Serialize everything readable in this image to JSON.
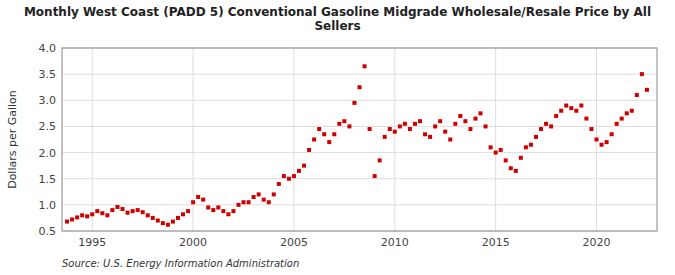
{
  "chart_data": {
    "type": "scatter",
    "title": "Monthly West Coast (PADD 5) Conventional Gasoline Midgrade Wholesale/Resale Price by All\nSellers",
    "y_label": "Dollars per Gallon",
    "annotations": [
      "Source: U.S. Energy Information Administration"
    ],
    "color": "#CC0000",
    "marker": "square",
    "grid": true,
    "xlim": [
      1993.5,
      2023.0
    ],
    "ylim": [
      0.5,
      4.0
    ],
    "xticks": [
      1995,
      2000,
      2005,
      2010,
      2015,
      2020
    ],
    "yticks": [
      0.5,
      {
        "value": 1,
        "label": "1.0"
      },
      1.5,
      {
        "value": 2,
        "label": "2.0"
      },
      2.5,
      {
        "value": 3,
        "label": "3.0"
      },
      3.5,
      {
        "value": 4,
        "label": "4.0"
      }
    ],
    "x": [
      1993.75,
      1994.0,
      1994.25,
      1994.5,
      1994.75,
      1995.0,
      1995.25,
      1995.5,
      1995.75,
      1996.0,
      1996.25,
      1996.5,
      1996.75,
      1997.0,
      1997.25,
      1997.5,
      1997.75,
      1998.0,
      1998.25,
      1998.5,
      1998.75,
      1999.0,
      1999.25,
      1999.5,
      1999.75,
      2000.0,
      2000.25,
      2000.5,
      2000.75,
      2001.0,
      2001.25,
      2001.5,
      2001.75,
      2002.0,
      2002.25,
      2002.5,
      2002.75,
      2003.0,
      2003.25,
      2003.5,
      2003.75,
      2004.0,
      2004.25,
      2004.5,
      2004.75,
      2005.0,
      2005.25,
      2005.5,
      2005.75,
      2006.0,
      2006.25,
      2006.5,
      2006.75,
      2007.0,
      2007.25,
      2007.5,
      2007.75,
      2008.0,
      2008.25,
      2008.5,
      2008.75,
      2009.0,
      2009.25,
      2009.5,
      2009.75,
      2010.0,
      2010.25,
      2010.5,
      2010.75,
      2011.0,
      2011.25,
      2011.5,
      2011.75,
      2012.0,
      2012.25,
      2012.5,
      2012.75,
      2013.0,
      2013.25,
      2013.5,
      2013.75,
      2014.0,
      2014.25,
      2014.5,
      2014.75,
      2015.0,
      2015.25,
      2015.5,
      2015.75,
      2016.0,
      2016.25,
      2016.5,
      2016.75,
      2017.0,
      2017.25,
      2017.5,
      2017.75,
      2018.0,
      2018.25,
      2018.5,
      2018.75,
      2019.0,
      2019.25,
      2019.5,
      2019.75,
      2020.0,
      2020.25,
      2020.5,
      2020.75,
      2021.0,
      2021.25,
      2021.5,
      2021.75,
      2022.0,
      2022.25,
      2022.5
    ],
    "values": [
      0.68,
      0.72,
      0.76,
      0.8,
      0.78,
      0.82,
      0.88,
      0.84,
      0.8,
      0.9,
      0.96,
      0.92,
      0.85,
      0.88,
      0.9,
      0.86,
      0.8,
      0.75,
      0.7,
      0.65,
      0.62,
      0.68,
      0.75,
      0.82,
      0.88,
      1.05,
      1.15,
      1.1,
      0.95,
      0.9,
      0.95,
      0.88,
      0.82,
      0.88,
      1.0,
      1.05,
      1.05,
      1.15,
      1.2,
      1.1,
      1.05,
      1.2,
      1.4,
      1.55,
      1.5,
      1.55,
      1.65,
      1.75,
      2.05,
      2.25,
      2.45,
      2.35,
      2.2,
      2.35,
      2.55,
      2.6,
      2.5,
      2.95,
      3.25,
      3.65,
      2.45,
      1.55,
      1.85,
      2.3,
      2.45,
      2.4,
      2.5,
      2.55,
      2.45,
      2.55,
      2.6,
      2.35,
      2.3,
      2.5,
      2.6,
      2.4,
      2.25,
      2.55,
      2.7,
      2.6,
      2.45,
      2.65,
      2.75,
      2.5,
      2.1,
      2.0,
      2.05,
      1.85,
      1.7,
      1.65,
      1.9,
      2.1,
      2.15,
      2.3,
      2.45,
      2.55,
      2.5,
      2.7,
      2.8,
      2.9,
      2.85,
      2.8,
      2.9,
      2.65,
      2.45,
      2.25,
      2.15,
      2.2,
      2.35,
      2.55,
      2.65,
      2.75,
      2.8,
      3.1,
      3.5,
      3.2
    ]
  }
}
